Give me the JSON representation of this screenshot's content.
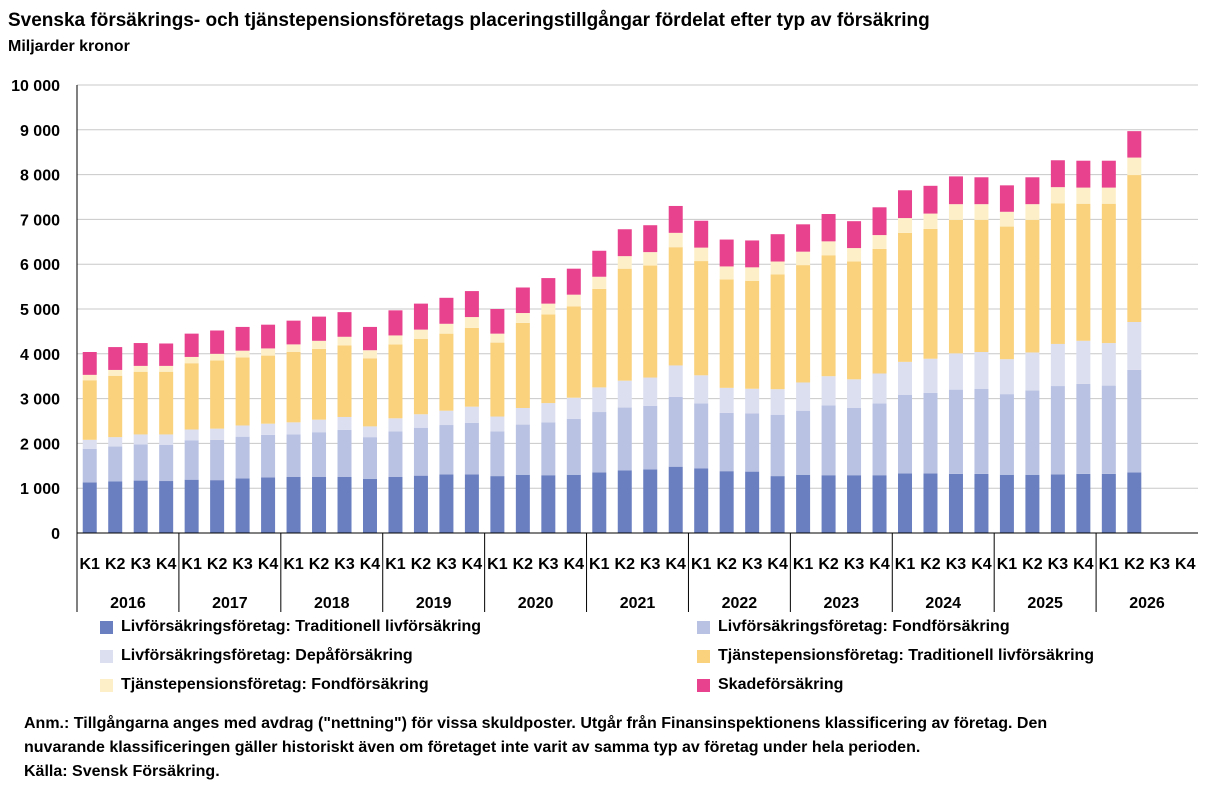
{
  "chart_data": {
    "type": "bar",
    "stacked": true,
    "title": "Svenska försäkrings- och tjänstepensionsföretags placeringstillgångar fördelat efter typ av försäkring",
    "subtitle": "Miljarder kronor",
    "ylim": [
      0,
      10000
    ],
    "yticks": [
      "0",
      "1 000",
      "2 000",
      "3 000",
      "4 000",
      "5 000",
      "6 000",
      "7 000",
      "8 000",
      "9 000",
      "10 000"
    ],
    "grid": true,
    "legend_position": "bottom",
    "quarters": [
      "K1",
      "K2",
      "K3",
      "K4"
    ],
    "years": [
      "2016",
      "2017",
      "2018",
      "2019",
      "2020",
      "2021",
      "2022",
      "2023",
      "2024",
      "2025",
      "2026"
    ],
    "series": [
      {
        "name": "Livförsäkringsföretag: Traditionell livförsäkring",
        "color": "#6a7fc0",
        "values": [
          1130,
          1150,
          1170,
          1160,
          1190,
          1180,
          1220,
          1240,
          1250,
          1250,
          1250,
          1210,
          1250,
          1280,
          1310,
          1310,
          1270,
          1300,
          1290,
          1300,
          1350,
          1400,
          1420,
          1480,
          1440,
          1380,
          1370,
          1270,
          1300,
          1290,
          1290,
          1290,
          1330,
          1330,
          1320,
          1320,
          1300,
          1300,
          1310,
          1320,
          1320,
          1350,
          null,
          null
        ]
      },
      {
        "name": "Livförsäkringsföretag: Fondförsäkring",
        "color": "#b9c2e3",
        "values": [
          750,
          780,
          810,
          810,
          880,
          900,
          930,
          950,
          950,
          1000,
          1050,
          930,
          1020,
          1070,
          1100,
          1150,
          1000,
          1120,
          1180,
          1250,
          1350,
          1400,
          1420,
          1560,
          1450,
          1300,
          1300,
          1370,
          1430,
          1560,
          1500,
          1600,
          1750,
          1800,
          1880,
          1900,
          1800,
          1880,
          1970,
          2010,
          1970,
          2290,
          null,
          null
        ]
      },
      {
        "name": "Livförsäkringsföretag: Depåförsäkring",
        "color": "#dcdff0",
        "values": [
          200,
          210,
          220,
          230,
          240,
          250,
          250,
          250,
          270,
          280,
          290,
          240,
          290,
          300,
          320,
          360,
          330,
          370,
          430,
          470,
          550,
          600,
          630,
          700,
          630,
          560,
          550,
          570,
          630,
          650,
          640,
          670,
          740,
          760,
          810,
          820,
          780,
          850,
          940,
          960,
          950,
          1070,
          null,
          null
        ]
      },
      {
        "name": "Tjänstepensionsföretag: Traditionell livförsäkring",
        "color": "#fad27e",
        "values": [
          1330,
          1370,
          1400,
          1400,
          1480,
          1520,
          1520,
          1520,
          1570,
          1580,
          1600,
          1520,
          1650,
          1680,
          1720,
          1760,
          1650,
          1900,
          1980,
          2040,
          2200,
          2500,
          2500,
          2640,
          2550,
          2420,
          2410,
          2560,
          2620,
          2700,
          2630,
          2780,
          2880,
          2900,
          2980,
          2950,
          2960,
          2960,
          3140,
          3060,
          3110,
          3280,
          null,
          null
        ]
      },
      {
        "name": "Tjänstepensionsföretag: Fondförsäkring",
        "color": "#fdf0c9",
        "values": [
          120,
          130,
          130,
          130,
          140,
          150,
          150,
          160,
          170,
          180,
          190,
          180,
          200,
          210,
          220,
          240,
          200,
          220,
          240,
          260,
          270,
          280,
          300,
          320,
          300,
          290,
          300,
          290,
          300,
          310,
          300,
          310,
          330,
          340,
          350,
          350,
          330,
          350,
          360,
          360,
          360,
          390,
          null,
          null
        ]
      },
      {
        "name": "Skadeförsäkring",
        "color": "#e8418d",
        "values": [
          510,
          510,
          510,
          500,
          520,
          520,
          530,
          530,
          530,
          540,
          550,
          520,
          560,
          580,
          580,
          580,
          550,
          570,
          570,
          580,
          580,
          600,
          600,
          600,
          600,
          600,
          600,
          610,
          610,
          610,
          600,
          620,
          620,
          620,
          620,
          600,
          590,
          600,
          600,
          600,
          600,
          590,
          null,
          null
        ]
      }
    ]
  },
  "note_lines": [
    "Anm.: Tillgångarna anges med avdrag (\"nettning\") för vissa skuldposter. Utgår från Finansinspektionens klassificering av företag. Den",
    "nuvarande  klassificeringen gäller historiskt även om företaget inte varit av samma typ av företag under hela perioden.",
    "Källa: Svensk Försäkring."
  ]
}
